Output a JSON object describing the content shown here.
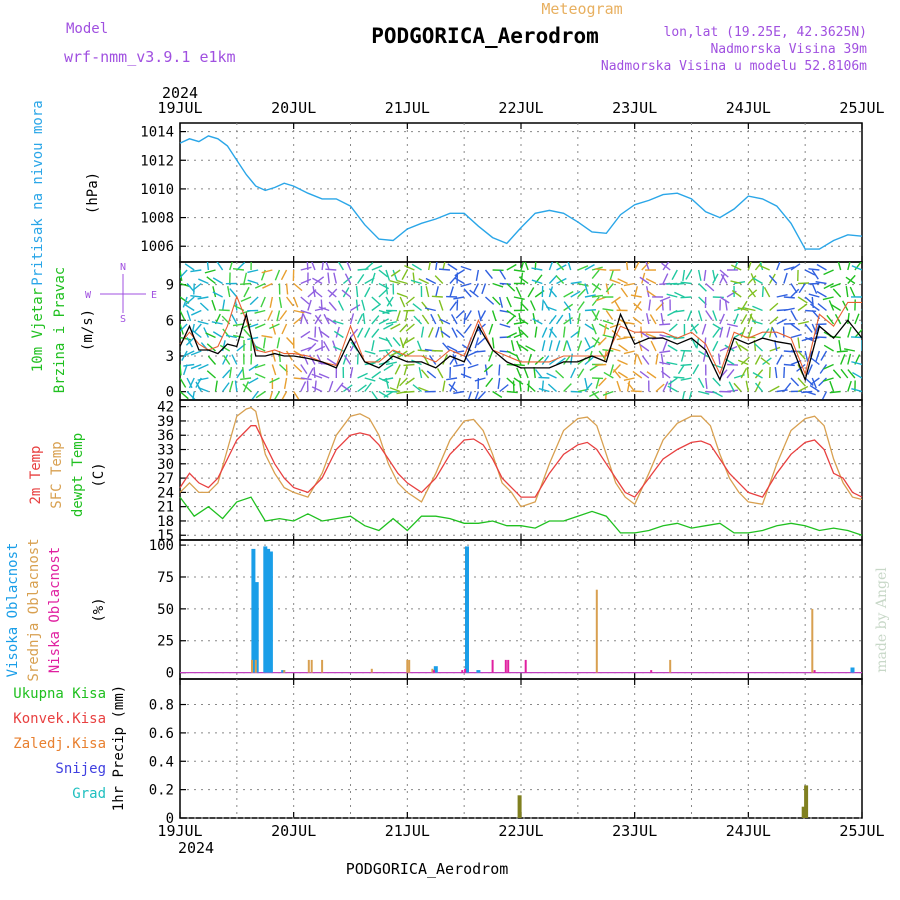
{
  "header": {
    "model_label": "Model",
    "model_name": "wrf-nmm_v3.9.1 e1km",
    "chart_kind": "Meteogram",
    "station": "PODGORICA_Aerodrom",
    "lonlat": "lon,lat (19.25E, 42.3625N)",
    "elevation": "Nadmorska Visina 39m",
    "model_elevation": "Nadmorska Visina u modelu 52.8106m"
  },
  "footer": {
    "station": "PODGORICA_Aerodrom",
    "credit": "made by Angel"
  },
  "colors": {
    "pressure": "#2aa6e8",
    "temp2m": "#e84040",
    "sfc": "#d8a050",
    "dewpt": "#20c020",
    "wind_speed": "#000000",
    "wind_gust": "#e86030",
    "high_cloud": "#1a9ee8",
    "mid_cloud": "#d8a050",
    "low_cloud": "#e020a0",
    "precip_total": "#808020",
    "precip_conv": "#e84040",
    "precip_frozen": "#e88030",
    "precip_snow": "#4040e0",
    "precip_hail": "#20c0c0",
    "label_purple": "#a050e0"
  },
  "chart_data": [
    {
      "type": "line",
      "panel": "pressure",
      "title": "",
      "ylabel_lines": [
        "Pritisak na nivou mora",
        "(hPa)"
      ],
      "xlabel": "",
      "x_ticks": [
        "19JUL",
        "20JUL",
        "21JUL",
        "22JUL",
        "23JUL",
        "24JUL",
        "25JUL"
      ],
      "x_year": "2024",
      "ylim": [
        1004.9,
        1014.6
      ],
      "y_ticks": [
        "1006",
        "1008",
        "1010",
        "1012",
        "1014"
      ],
      "grid": true,
      "series": [
        {
          "name": "",
          "x": [
            0,
            2,
            4,
            6,
            8,
            10,
            12,
            14,
            16,
            18,
            20,
            22,
            24,
            27,
            30,
            33,
            36,
            39,
            42,
            45,
            48,
            51,
            54,
            57,
            60,
            63,
            66,
            69,
            72,
            75,
            78,
            81,
            84,
            87,
            90,
            93,
            96,
            99,
            102,
            105,
            108,
            111,
            114,
            117,
            120,
            123,
            126,
            129,
            132,
            135,
            138,
            141,
            144
          ],
          "values": [
            1013.2,
            1013.5,
            1013.3,
            1013.7,
            1013.5,
            1013.0,
            1012.0,
            1011.0,
            1010.2,
            1009.9,
            1010.1,
            1010.4,
            1010.2,
            1009.7,
            1009.3,
            1009.3,
            1008.8,
            1007.5,
            1006.5,
            1006.4,
            1007.2,
            1007.6,
            1007.9,
            1008.3,
            1008.3,
            1007.4,
            1006.6,
            1006.2,
            1007.3,
            1008.3,
            1008.5,
            1008.3,
            1007.7,
            1007.0,
            1006.9,
            1008.2,
            1008.9,
            1009.2,
            1009.6,
            1009.7,
            1009.3,
            1008.4,
            1008.0,
            1008.6,
            1009.5,
            1009.3,
            1008.8,
            1007.6,
            1005.8,
            1005.8,
            1006.4,
            1006.8,
            1006.7
          ]
        }
      ]
    },
    {
      "type": "line",
      "panel": "wind",
      "title": "",
      "ylabel_lines": [
        "10m Vjetar",
        "Brzina i Pravac",
        "(m/s)"
      ],
      "compass_legend": {
        "n": "N",
        "s": "S",
        "e": "E",
        "w": "W"
      },
      "xlabel": "",
      "ylim": [
        -0.7,
        10.9
      ],
      "y_ticks": [
        "0",
        "3",
        "6",
        "9"
      ],
      "grid": true,
      "series": [
        {
          "name": "",
          "role": "speed",
          "x": [
            0,
            2,
            4,
            6,
            8,
            10,
            12,
            14,
            16,
            18,
            20,
            22,
            24,
            27,
            30,
            33,
            36,
            39,
            42,
            45,
            48,
            51,
            54,
            57,
            60,
            63,
            66,
            69,
            72,
            75,
            78,
            81,
            84,
            87,
            90,
            93,
            96,
            99,
            102,
            105,
            108,
            111,
            114,
            117,
            120,
            123,
            126,
            129,
            132,
            135,
            138,
            141,
            144
          ],
          "values": [
            3.8,
            5.5,
            3.5,
            3.5,
            3.2,
            4.0,
            3.8,
            6.5,
            3.0,
            3.0,
            3.2,
            3.0,
            3.0,
            2.8,
            2.5,
            2.0,
            4.5,
            2.5,
            2.0,
            3.0,
            2.5,
            2.5,
            2.0,
            3.0,
            2.5,
            5.5,
            3.5,
            2.5,
            2.0,
            2.0,
            2.0,
            2.5,
            2.5,
            3.0,
            2.5,
            6.5,
            4.0,
            4.5,
            4.5,
            4.0,
            4.5,
            3.5,
            1.0,
            4.5,
            4.0,
            4.5,
            4.2,
            4.0,
            1.0,
            5.5,
            4.5,
            6.0,
            4.5
          ]
        },
        {
          "name": "",
          "role": "gust",
          "x": [
            0,
            2,
            4,
            6,
            8,
            10,
            12,
            14,
            16,
            18,
            20,
            22,
            24,
            27,
            30,
            33,
            36,
            39,
            42,
            45,
            48,
            51,
            54,
            57,
            60,
            63,
            66,
            69,
            72,
            75,
            78,
            81,
            84,
            87,
            90,
            93,
            96,
            99,
            102,
            105,
            108,
            111,
            114,
            117,
            120,
            123,
            126,
            129,
            132,
            135,
            138,
            141,
            144
          ],
          "values": [
            4.0,
            5.0,
            4.0,
            3.5,
            3.8,
            5.5,
            8.0,
            6.0,
            3.5,
            3.3,
            3.5,
            3.2,
            3.2,
            3.0,
            2.5,
            2.2,
            5.5,
            2.5,
            2.5,
            3.5,
            3.0,
            3.0,
            2.5,
            3.5,
            3.0,
            6.0,
            3.5,
            3.0,
            2.5,
            2.5,
            2.5,
            3.0,
            3.0,
            3.0,
            3.0,
            5.5,
            5.0,
            5.0,
            5.0,
            4.5,
            5.0,
            4.0,
            1.5,
            5.0,
            4.5,
            5.0,
            5.0,
            4.5,
            1.5,
            6.5,
            5.5,
            7.5,
            7.5
          ]
        }
      ]
    },
    {
      "type": "line",
      "panel": "temperature",
      "title": "",
      "ylabel_lines": [
        "2m Temp",
        "SFC Temp",
        "dewpt Temp",
        "(C)"
      ],
      "xlabel": "",
      "ylim": [
        14.0,
        43.4
      ],
      "y_ticks": [
        "15",
        "18",
        "21",
        "24",
        "27",
        "30",
        "33",
        "36",
        "39",
        "42"
      ],
      "grid": true,
      "series": [
        {
          "name": "2m Temp",
          "x": [
            0,
            2,
            4,
            6,
            8,
            10,
            12,
            14,
            15,
            16,
            18,
            20,
            22,
            24,
            27,
            30,
            33,
            36,
            38,
            40,
            42,
            44,
            46,
            48,
            51,
            54,
            57,
            60,
            62,
            64,
            66,
            68,
            70,
            72,
            75,
            78,
            81,
            84,
            86,
            88,
            90,
            92,
            94,
            96,
            99,
            102,
            105,
            108,
            110,
            112,
            114,
            116,
            118,
            120,
            123,
            126,
            129,
            132,
            134,
            136,
            138,
            140,
            142,
            144
          ],
          "values": [
            25,
            28,
            26,
            25,
            27,
            31,
            35,
            37,
            38,
            38,
            34,
            30,
            27,
            25,
            24,
            27,
            33,
            36,
            36.5,
            36,
            34,
            31,
            28,
            26,
            24,
            27,
            32,
            35,
            35.2,
            34,
            31,
            27,
            25,
            23,
            23,
            28,
            32,
            34,
            34.5,
            33,
            30,
            27,
            24,
            23,
            27,
            31,
            33,
            34.5,
            34.8,
            34,
            31,
            28,
            26,
            24,
            23,
            28,
            32,
            34.5,
            35,
            33,
            28,
            27,
            24,
            23
          ]
        },
        {
          "name": "SFC Temp",
          "x": [
            0,
            2,
            4,
            6,
            8,
            10,
            12,
            14,
            15,
            16,
            18,
            20,
            22,
            24,
            27,
            30,
            33,
            36,
            38,
            40,
            42,
            44,
            46,
            48,
            51,
            54,
            57,
            60,
            62,
            64,
            66,
            68,
            70,
            72,
            75,
            78,
            81,
            84,
            86,
            88,
            90,
            92,
            94,
            96,
            99,
            102,
            105,
            108,
            110,
            112,
            114,
            116,
            118,
            120,
            123,
            126,
            129,
            132,
            134,
            136,
            138,
            140,
            142,
            144
          ],
          "values": [
            24,
            26,
            24,
            24,
            26,
            33,
            40,
            41.5,
            41.8,
            41,
            32,
            28,
            25,
            24,
            23,
            28,
            36,
            40,
            40.5,
            39.5,
            36,
            30,
            26,
            24,
            22,
            28,
            35,
            39,
            39.3,
            37,
            32,
            26,
            24,
            21,
            22,
            30,
            37,
            39.5,
            39.8,
            38,
            32,
            26,
            23,
            21.5,
            28,
            35,
            38.5,
            40,
            40,
            38,
            32,
            27,
            24,
            22,
            21.5,
            30,
            37,
            39.5,
            40,
            38,
            31,
            26,
            23,
            22.5
          ]
        },
        {
          "name": "dewpt Temp",
          "x": [
            0,
            3,
            6,
            9,
            12,
            15,
            18,
            21,
            24,
            27,
            30,
            33,
            36,
            39,
            42,
            45,
            48,
            51,
            54,
            57,
            60,
            63,
            66,
            69,
            72,
            75,
            78,
            81,
            84,
            87,
            90,
            93,
            96,
            99,
            102,
            105,
            108,
            111,
            114,
            117,
            120,
            123,
            126,
            129,
            132,
            135,
            138,
            141,
            144
          ],
          "values": [
            23,
            19,
            21,
            18.5,
            22,
            23,
            18,
            18.5,
            18,
            19.5,
            18,
            18.5,
            19,
            17,
            16,
            18.5,
            16,
            19,
            19,
            18.5,
            17.5,
            17.5,
            18,
            17,
            17,
            16.5,
            18,
            18,
            19,
            20,
            19,
            15.5,
            15.5,
            16,
            17,
            17.5,
            16.5,
            17,
            17.5,
            15.5,
            15.5,
            16,
            17,
            17.5,
            17,
            16,
            16.5,
            16,
            15
          ]
        }
      ]
    },
    {
      "type": "bar",
      "panel": "cloud",
      "title": "",
      "ylabel_lines": [
        "Visoka Oblacnost",
        "Srednja Oblacnost",
        "Niska Oblacnost",
        "(%)"
      ],
      "xlabel": "",
      "ylim": [
        -5,
        104
      ],
      "y_ticks": [
        "0",
        "25",
        "50",
        "75",
        "100"
      ],
      "grid": true,
      "series": [
        {
          "name": "Visoka Oblacnost",
          "x": [
            15.5,
            16.2,
            18.0,
            18.6,
            19.2,
            21.8,
            54.0,
            60.6,
            63.0,
            142.0
          ],
          "values": [
            97,
            71,
            99,
            97,
            95,
            2,
            5,
            99,
            2,
            4
          ]
        },
        {
          "name": "Srednja Oblacnost",
          "x": [
            15.2,
            16.0,
            22.0,
            27.2,
            27.8,
            30.0,
            40.5,
            48.0,
            48.4,
            53.3,
            88.0,
            103.5,
            133.5
          ],
          "values": [
            10,
            10,
            2,
            10,
            10,
            10,
            3,
            10,
            10,
            3,
            65,
            10,
            50
          ]
        },
        {
          "name": "Niska Oblacnost",
          "x": [
            53.6,
            59.6,
            60.2,
            66.0,
            68.8,
            69.3,
            73.0,
            99.5,
            134.0
          ],
          "values": [
            2,
            2,
            3,
            10,
            10,
            10,
            10,
            2,
            2
          ]
        }
      ]
    },
    {
      "type": "bar",
      "panel": "precipitation",
      "title": "",
      "ylabel_lines": [
        "1hr Precip (mm)"
      ],
      "legend": [
        "Ukupna Kisa",
        "Konvek.Kisa",
        "Zaledj.Kisa",
        "Snijeg",
        "Grad"
      ],
      "xlabel": "",
      "ylim": [
        0,
        0.98
      ],
      "y_ticks": [
        "0",
        "0.2",
        "0.4",
        "0.6",
        "0.8"
      ],
      "grid": true,
      "series": [
        {
          "name": "Ukupna Kisa",
          "x": [
            71.7,
            131.7,
            132.2
          ],
          "values": [
            0.16,
            0.08,
            0.23
          ]
        }
      ]
    }
  ]
}
